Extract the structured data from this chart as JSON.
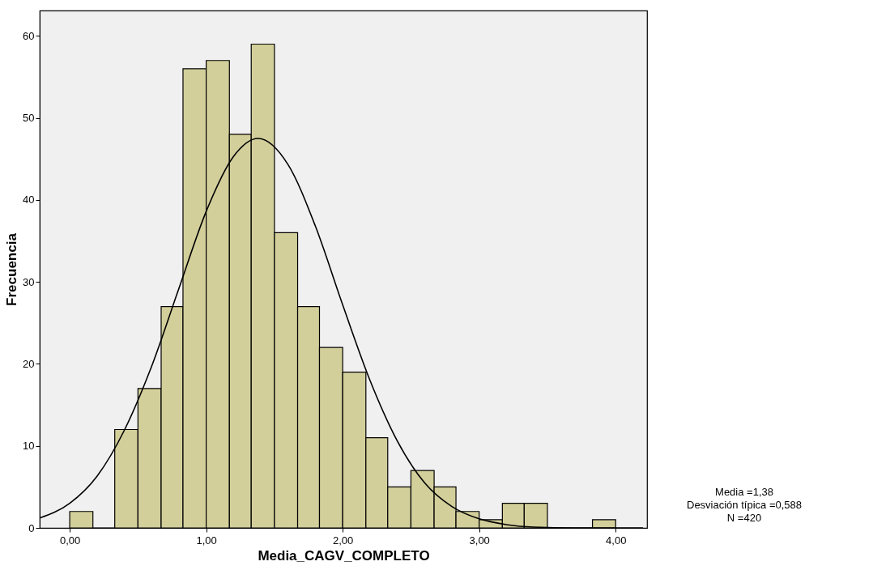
{
  "chart_data": {
    "type": "histogram",
    "xlabel": "Media_CAGV_COMPLETO",
    "ylabel": "Frecuencia",
    "bins": [
      0,
      0.17,
      0.33,
      0.5,
      0.67,
      0.83,
      1,
      1.17,
      1.33,
      1.5,
      1.67,
      1.83,
      2,
      2.17,
      2.33,
      2.5,
      2.67,
      2.83,
      3,
      3.17,
      3.33,
      3.5,
      3.83,
      4
    ],
    "values": [
      2,
      0,
      12,
      17,
      27,
      56,
      57,
      48,
      59,
      36,
      27,
      22,
      19,
      11,
      5,
      7,
      5,
      2,
      1,
      3,
      3,
      0,
      1
    ],
    "color": "#d3cf9b",
    "series": [
      {
        "type": "line",
        "color": "#000000",
        "x": [
          -0.22,
          0,
          0.2,
          0.4,
          0.6,
          0.8,
          1.0,
          1.2,
          1.38,
          1.6,
          1.8,
          2.0,
          2.2,
          2.4,
          2.6,
          2.8,
          3.0,
          3.2,
          3.4,
          3.7,
          4.2
        ],
        "values": [
          1.2,
          3.0,
          6.3,
          11.9,
          19.7,
          29.2,
          38.6,
          45.3,
          47.5,
          44.3,
          36.8,
          27.2,
          18.0,
          10.6,
          5.5,
          2.6,
          1.1,
          0.4,
          0.1,
          0.0,
          0.0
        ]
      }
    ],
    "xlim": [
      -0.22,
      4.23
    ],
    "ylim": [
      0,
      63.1
    ],
    "xticks": [
      {
        "value": 0,
        "label": "0,00"
      },
      {
        "value": 1,
        "label": "1,00"
      },
      {
        "value": 2,
        "label": "2,00"
      },
      {
        "value": 3,
        "label": "3,00"
      },
      {
        "value": 4,
        "label": "4,00"
      }
    ],
    "yticks": [
      0,
      10,
      20,
      30,
      40,
      50,
      60
    ],
    "annotations": [
      "Media =1,38",
      "Desviación típica =0,588",
      "N =420"
    ]
  }
}
